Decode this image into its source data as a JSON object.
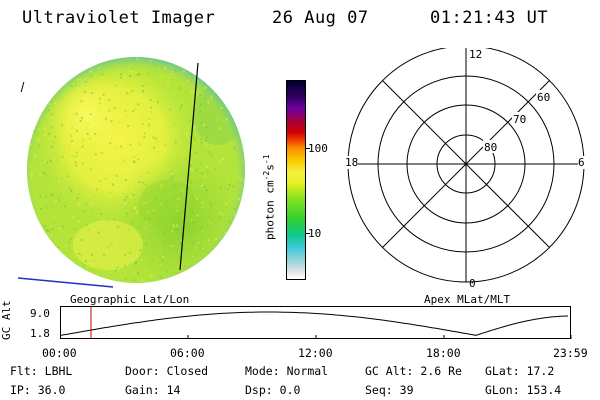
{
  "header": {
    "instrument": "Ultraviolet Imager",
    "date": "26 Aug 07",
    "time": "01:21:43 UT"
  },
  "colorbar": {
    "unit_label": "photon cm",
    "unit_exp1": "-2",
    "unit_s": "s",
    "unit_exp2": "-1",
    "tick_100": "100",
    "tick_10": "10"
  },
  "polar_plot": {
    "label_top": "12",
    "label_left": "18",
    "label_right": "6",
    "label_bottom": "0",
    "ring_60": "60",
    "ring_70": "70",
    "ring_80": "80"
  },
  "coord_labels": {
    "left": "Geographic Lat/Lon",
    "right": "Apex MLat/MLT"
  },
  "gc_alt_axis": {
    "label": "GC Alt",
    "tick_high": "9.0",
    "tick_low": "1.8"
  },
  "time_axis": {
    "t0": "00:00",
    "t1": "06:00",
    "t2": "12:00",
    "t3": "18:00",
    "t4": "23:59"
  },
  "status": {
    "flt_label": "Flt:",
    "flt_value": "LBHL",
    "door_label": "Door:",
    "door_value": "Closed",
    "mode_label": "Mode:",
    "mode_value": "Normal",
    "gcalt_label": "GC Alt:",
    "gcalt_value": "2.6 Re",
    "glat_label": "GLat:",
    "glat_value": "17.2",
    "ip_label": "IP:",
    "ip_value": "36.0",
    "gain_label": "Gain:",
    "gain_value": "14",
    "dsp_label": "Dsp:",
    "dsp_value": "0.0",
    "seq_label": "Seq:",
    "seq_value": "39",
    "glon_label": "GLon:",
    "glon_value": "153.4"
  },
  "colors": {
    "globe_base": "#b8e838",
    "globe_bright": "#f0f040",
    "globe_dark": "#70c830",
    "marker": "#c00000",
    "horizon_line": "#2030c0"
  }
}
